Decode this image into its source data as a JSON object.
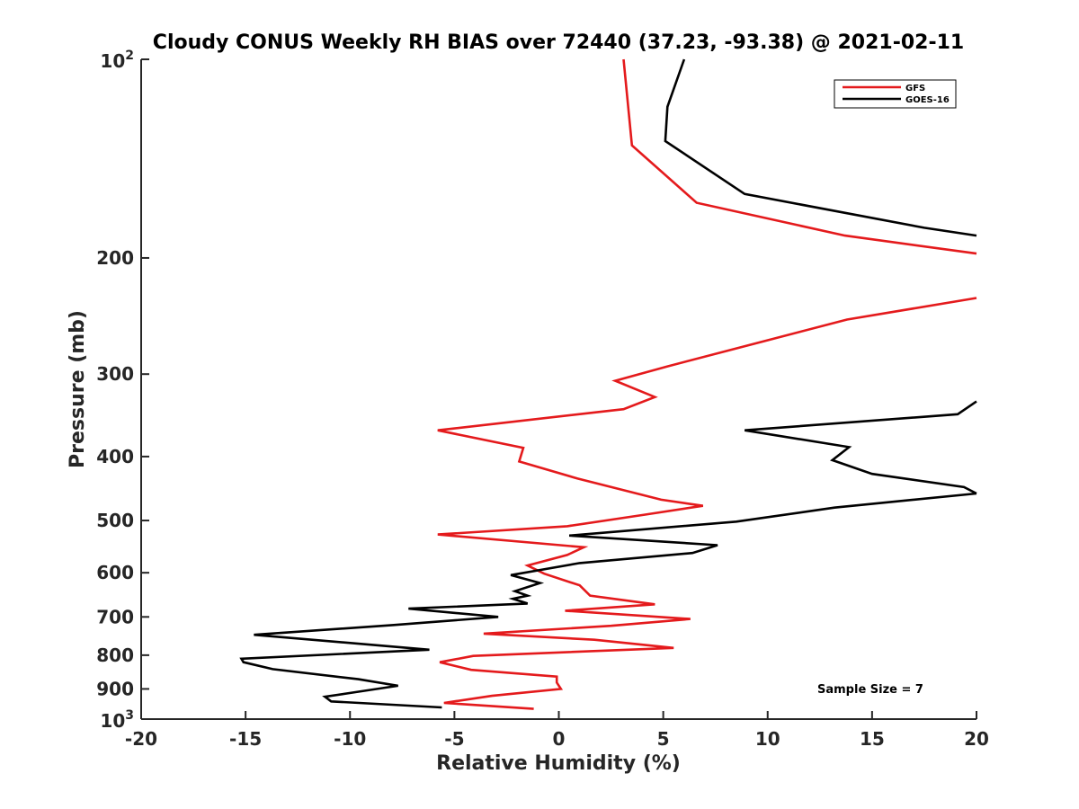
{
  "chart_data": {
    "type": "line",
    "title": "Cloudy CONUS Weekly RH BIAS over 72440 (37.23, -93.38) @ 2021-02-11",
    "xlabel": "Relative Humidity (%)",
    "ylabel": "Pressure (mb)",
    "xlim": [
      -20,
      20
    ],
    "ylim": [
      100,
      1000
    ],
    "y_scale": "log",
    "y_reversed": true,
    "grid": false,
    "legend_position": "top-right",
    "x_ticks": [
      "-20",
      "-15",
      "-10",
      "-5",
      "0",
      "5",
      "10",
      "15",
      "20"
    ],
    "y_ticks": [
      {
        "value": 100,
        "base": "10",
        "exp": "2"
      },
      {
        "value": 200,
        "label": "200"
      },
      {
        "value": 300,
        "label": "300"
      },
      {
        "value": 400,
        "label": "400"
      },
      {
        "value": 500,
        "label": "500"
      },
      {
        "value": 600,
        "label": "600"
      },
      {
        "value": 700,
        "label": "700"
      },
      {
        "value": 800,
        "label": "800"
      },
      {
        "value": 900,
        "label": "900"
      },
      {
        "value": 1000,
        "base": "10",
        "exp": "3"
      }
    ],
    "annotation": "Sample Size = 7",
    "series": [
      {
        "name": "GFS",
        "color": "#e41a1c",
        "segments": [
          [
            [
              3.1,
              100
            ],
            [
              3.5,
              135
            ],
            [
              6.6,
              165
            ],
            [
              13.7,
              185
            ],
            [
              20,
              197
            ]
          ],
          [
            [
              20,
              230
            ],
            [
              13.8,
              248
            ],
            [
              5.2,
              292
            ],
            [
              2.7,
              307
            ],
            [
              4.6,
              325
            ],
            [
              3.1,
              339
            ],
            [
              -5.8,
              365
            ],
            [
              -1.7,
              388
            ],
            [
              -1.9,
              407
            ],
            [
              0.9,
              432
            ],
            [
              4.9,
              465
            ],
            [
              6.9,
              475
            ],
            [
              4.1,
              490
            ],
            [
              0.4,
              510
            ],
            [
              -5.8,
              525
            ],
            [
              1.2,
              549
            ],
            [
              0.4,
              564
            ],
            [
              -1.5,
              585
            ],
            [
              -0.7,
              602
            ],
            [
              1.0,
              627
            ],
            [
              1.5,
              650
            ],
            [
              4.6,
              670
            ],
            [
              0.3,
              685
            ],
            [
              6.3,
              705
            ],
            [
              2.5,
              722
            ],
            [
              -3.6,
              742
            ],
            [
              1.7,
              758
            ],
            [
              5.5,
              780
            ],
            [
              -4.1,
              802
            ],
            [
              -5.7,
              820
            ],
            [
              -4.2,
              842
            ],
            [
              -0.1,
              862
            ],
            [
              -0.1,
              880
            ],
            [
              0.1,
              900
            ],
            [
              -3.2,
              922
            ],
            [
              -5.5,
              945
            ],
            [
              -1.2,
              965
            ]
          ]
        ]
      },
      {
        "name": "GOES-16",
        "color": "#000000",
        "segments": [
          [
            [
              6.0,
              100
            ],
            [
              5.2,
              118
            ],
            [
              5.1,
              133
            ],
            [
              8.9,
              160
            ],
            [
              17.5,
              180
            ],
            [
              20,
              185
            ]
          ],
          [
            [
              20,
              330
            ],
            [
              19.1,
              345
            ],
            [
              8.9,
              365
            ],
            [
              13.9,
              387
            ],
            [
              13.1,
              405
            ],
            [
              15.0,
              425
            ],
            [
              19.4,
              445
            ],
            [
              20,
              455
            ]
          ],
          [
            [
              20,
              455
            ],
            [
              13.2,
              478
            ],
            [
              8.5,
              502
            ],
            [
              0.5,
              527
            ],
            [
              7.6,
              545
            ],
            [
              6.4,
              560
            ],
            [
              1.0,
              580
            ],
            [
              -2.3,
              605
            ],
            [
              -0.9,
              622
            ],
            [
              -2.1,
              640
            ],
            [
              -1.5,
              650
            ],
            [
              -2.2,
              657
            ],
            [
              -1.5,
              668
            ],
            [
              -7.2,
              680
            ],
            [
              -2.9,
              700
            ],
            [
              -7.9,
              720
            ],
            [
              -14.6,
              745
            ],
            [
              -6.2,
              785
            ],
            [
              -15.2,
              810
            ],
            [
              -15.1,
              820
            ],
            [
              -13.7,
              840
            ],
            [
              -9.6,
              870
            ],
            [
              -7.7,
              890
            ],
            [
              -9.7,
              910
            ],
            [
              -11.2,
              925
            ],
            [
              -10.9,
              940
            ],
            [
              -5.6,
              960
            ]
          ]
        ]
      }
    ]
  }
}
